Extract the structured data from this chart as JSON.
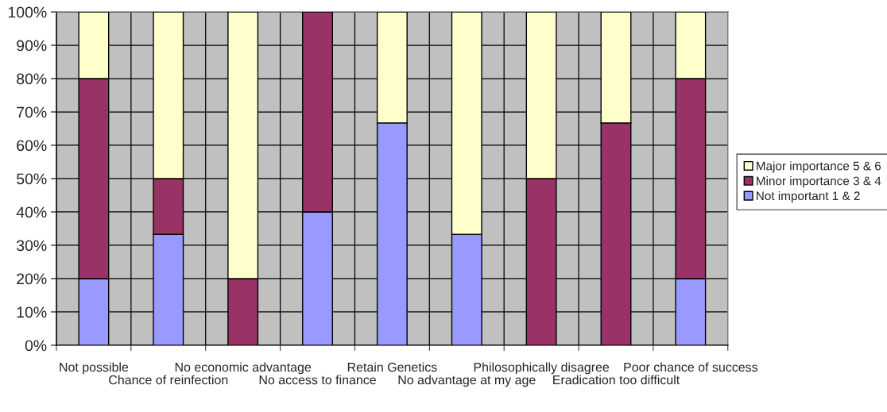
{
  "chart_data": {
    "type": "bar",
    "stacked": true,
    "categories": [
      "Not possible",
      "Chance of reinfection",
      "No economic advantage",
      "No access to finance",
      "Retain Genetics",
      "No advantage at my age",
      "Philosophically disagree",
      "Eradication too difficult",
      "Poor chance of success"
    ],
    "series": [
      {
        "name": "Not important 1 & 2",
        "color": "#9999ff",
        "values": [
          20,
          33.3,
          0,
          40,
          66.7,
          33.3,
          0,
          0,
          20
        ]
      },
      {
        "name": "Minor importance 3 & 4",
        "color": "#993366",
        "values": [
          60,
          16.7,
          20,
          60,
          0,
          0,
          50,
          66.7,
          60
        ]
      },
      {
        "name": "Major importance 5 & 6",
        "color": "#ffffcc",
        "values": [
          20,
          50,
          80,
          0,
          33.3,
          66.7,
          50,
          33.3,
          20
        ]
      }
    ],
    "ylim": [
      0,
      100
    ],
    "yticks": [
      {
        "value": 0,
        "label": "0%"
      },
      {
        "value": 10,
        "label": "10%"
      },
      {
        "value": 20,
        "label": "20%"
      },
      {
        "value": 30,
        "label": "30%"
      },
      {
        "value": 40,
        "label": "40%"
      },
      {
        "value": 50,
        "label": "50%"
      },
      {
        "value": 60,
        "label": "60%"
      },
      {
        "value": 70,
        "label": "70%"
      },
      {
        "value": 80,
        "label": "80%"
      },
      {
        "value": 90,
        "label": "90%"
      },
      {
        "value": 100,
        "label": "100%"
      }
    ],
    "grid": true,
    "legend": "right"
  }
}
